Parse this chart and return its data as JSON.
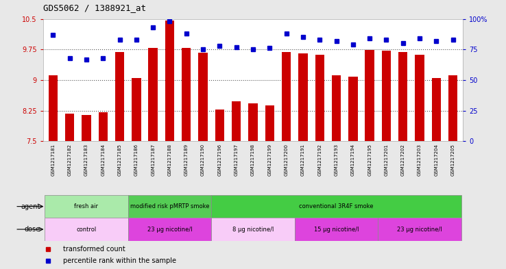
{
  "title": "GDS5062 / 1388921_at",
  "samples": [
    "GSM1217181",
    "GSM1217182",
    "GSM1217183",
    "GSM1217184",
    "GSM1217185",
    "GSM1217186",
    "GSM1217187",
    "GSM1217188",
    "GSM1217189",
    "GSM1217190",
    "GSM1217196",
    "GSM1217197",
    "GSM1217198",
    "GSM1217199",
    "GSM1217200",
    "GSM1217191",
    "GSM1217192",
    "GSM1217193",
    "GSM1217194",
    "GSM1217195",
    "GSM1217201",
    "GSM1217202",
    "GSM1217203",
    "GSM1217204",
    "GSM1217205"
  ],
  "bar_values": [
    9.12,
    8.18,
    8.14,
    8.21,
    9.68,
    9.05,
    9.78,
    10.45,
    9.78,
    9.67,
    8.27,
    8.48,
    8.42,
    8.38,
    9.68,
    9.65,
    9.62,
    9.12,
    9.08,
    9.73,
    9.72,
    9.68,
    9.62,
    9.05,
    9.12
  ],
  "percentile_values": [
    87,
    68,
    67,
    68,
    83,
    83,
    93,
    98,
    88,
    75,
    78,
    77,
    75,
    76,
    88,
    85,
    83,
    82,
    79,
    84,
    83,
    80,
    84,
    82,
    83
  ],
  "ylim_left": [
    7.5,
    10.5
  ],
  "ylim_right": [
    0,
    100
  ],
  "yticks_left": [
    7.5,
    8.25,
    9.0,
    9.75,
    10.5
  ],
  "yticks_right": [
    0,
    25,
    50,
    75,
    100
  ],
  "ytick_labels_left": [
    "7.5",
    "8.25",
    "9",
    "9.75",
    "10.5"
  ],
  "ytick_labels_right": [
    "0",
    "25",
    "50",
    "75",
    "100%"
  ],
  "bar_color": "#cc0000",
  "dot_color": "#0000cc",
  "dotted_lines": [
    8.25,
    9.0,
    9.75
  ],
  "agent_groups": [
    {
      "label": "fresh air",
      "start": 0,
      "end": 5,
      "color": "#aaeaaa"
    },
    {
      "label": "modified risk pMRTP smoke",
      "start": 5,
      "end": 10,
      "color": "#55cc55"
    },
    {
      "label": "conventional 3R4F smoke",
      "start": 10,
      "end": 25,
      "color": "#44cc44"
    }
  ],
  "dose_groups": [
    {
      "label": "control",
      "start": 0,
      "end": 5,
      "color": "#f8ccf8"
    },
    {
      "label": "23 µg nicotine/l",
      "start": 5,
      "end": 10,
      "color": "#dd44dd"
    },
    {
      "label": "8 µg nicotine/l",
      "start": 10,
      "end": 15,
      "color": "#f8ccf8"
    },
    {
      "label": "15 µg nicotine/l",
      "start": 15,
      "end": 20,
      "color": "#dd44dd"
    },
    {
      "label": "23 µg nicotine/l",
      "start": 20,
      "end": 25,
      "color": "#dd44dd"
    }
  ],
  "legend_items": [
    {
      "label": "transformed count",
      "color": "#cc0000"
    },
    {
      "label": "percentile rank within the sample",
      "color": "#0000cc"
    }
  ],
  "bg_color": "#e8e8e8",
  "plot_bg": "#ffffff",
  "sample_label_bg": "#d8d8d8"
}
